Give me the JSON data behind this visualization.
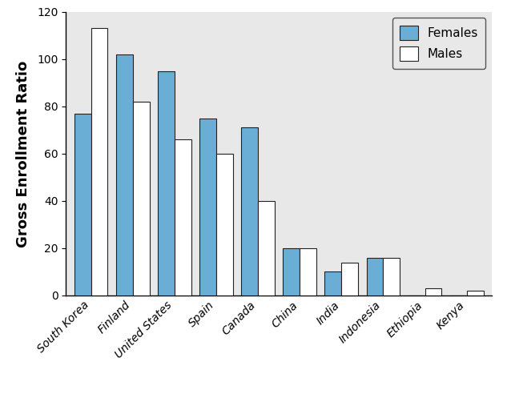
{
  "countries": [
    "South Korea",
    "Finland",
    "United States",
    "Spain",
    "Canada",
    "China",
    "India",
    "Indonesia",
    "Ethiopia",
    "Kenya"
  ],
  "females": [
    77,
    102,
    95,
    75,
    71,
    20,
    10,
    16,
    0,
    0
  ],
  "males": [
    113,
    82,
    66,
    60,
    40,
    20,
    14,
    16,
    3,
    2
  ],
  "female_color": "#6AAED6",
  "male_color": "#FFFFFF",
  "bar_edge_color": "#222222",
  "ylabel": "Gross Enrollment Ratio",
  "ylim": [
    0,
    120
  ],
  "yticks": [
    0,
    20,
    40,
    60,
    80,
    100,
    120
  ],
  "fig_bg_color": "#FFFFFF",
  "plot_bg_color": "#E8E8E8",
  "legend_labels": [
    "Females",
    "Males"
  ],
  "bar_width": 0.4,
  "tick_label_fontsize": 10,
  "axis_label_fontsize": 13
}
